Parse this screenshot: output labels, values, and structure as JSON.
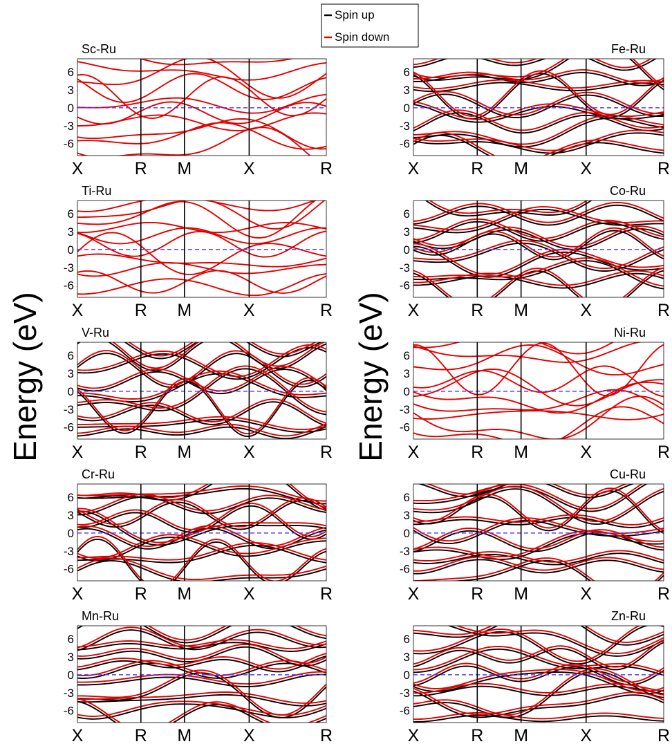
{
  "figure": {
    "ylabel_left": "Energy (eV)",
    "ylabel_right": "Energy (eV)"
  },
  "legend": [
    {
      "label": "Spin up",
      "color": "#000000"
    },
    {
      "label": "Spin down",
      "color": "#e00000"
    }
  ],
  "colors": {
    "spin_up": "#000000",
    "spin_down": "#e00000",
    "fermi_level": "#5a3dff"
  },
  "chart_data": [
    {
      "type": "line",
      "title": "Sc-Ru",
      "x_ticks": [
        "X",
        "R",
        "M",
        "X",
        "R"
      ],
      "y_ticks": [
        6,
        3,
        0,
        -3,
        -6
      ],
      "ylim": [
        -8,
        8.2
      ],
      "fermi_level": 0,
      "title_align": "left",
      "spin_split": false
    },
    {
      "type": "line",
      "title": "Fe-Ru",
      "x_ticks": [
        "X",
        "R",
        "M",
        "X",
        "R"
      ],
      "y_ticks": [
        6,
        3,
        0,
        -3,
        -6
      ],
      "ylim": [
        -8,
        8.2
      ],
      "fermi_level": 0,
      "title_align": "right",
      "spin_split": true
    },
    {
      "type": "line",
      "title": "Ti-Ru",
      "x_ticks": [
        "X",
        "R",
        "M",
        "X",
        "R"
      ],
      "y_ticks": [
        6,
        3,
        0,
        -3,
        -6
      ],
      "ylim": [
        -8,
        8.2
      ],
      "fermi_level": 0,
      "title_align": "left",
      "spin_split": false
    },
    {
      "type": "line",
      "title": "Co-Ru",
      "x_ticks": [
        "X",
        "R",
        "M",
        "X",
        "R"
      ],
      "y_ticks": [
        6,
        3,
        0,
        -3,
        -6
      ],
      "ylim": [
        -8,
        8.2
      ],
      "fermi_level": 0,
      "title_align": "right",
      "spin_split": true
    },
    {
      "type": "line",
      "title": "V-Ru",
      "x_ticks": [
        "X",
        "R",
        "M",
        "X",
        "R"
      ],
      "y_ticks": [
        6,
        3,
        0,
        -3,
        -6
      ],
      "ylim": [
        -8,
        8.2
      ],
      "fermi_level": 0,
      "title_align": "left",
      "spin_split": true
    },
    {
      "type": "line",
      "title": "Ni-Ru",
      "x_ticks": [
        "X",
        "R",
        "M",
        "X",
        "R"
      ],
      "y_ticks": [
        6,
        3,
        0,
        -3,
        -6
      ],
      "ylim": [
        -8,
        8.2
      ],
      "fermi_level": 0,
      "title_align": "right",
      "spin_split": false
    },
    {
      "type": "line",
      "title": "Cr-Ru",
      "x_ticks": [
        "X",
        "R",
        "M",
        "X",
        "R"
      ],
      "y_ticks": [
        6,
        3,
        0,
        -3,
        -6
      ],
      "ylim": [
        -8,
        8.2
      ],
      "fermi_level": 0,
      "title_align": "left",
      "spin_split": true
    },
    {
      "type": "line",
      "title": "Cu-Ru",
      "x_ticks": [
        "X",
        "R",
        "M",
        "X",
        "R"
      ],
      "y_ticks": [
        6,
        3,
        0,
        -3,
        -6
      ],
      "ylim": [
        -8,
        8.2
      ],
      "fermi_level": 0,
      "title_align": "right",
      "spin_split": true
    },
    {
      "type": "line",
      "title": "Mn-Ru",
      "x_ticks": [
        "X",
        "R",
        "M",
        "X",
        "R"
      ],
      "y_ticks": [
        6,
        3,
        0,
        -3,
        -6
      ],
      "ylim": [
        -8,
        8.2
      ],
      "fermi_level": 0,
      "title_align": "left",
      "spin_split": true
    },
    {
      "type": "line",
      "title": "Zn-Ru",
      "x_ticks": [
        "X",
        "R",
        "M",
        "X",
        "R"
      ],
      "y_ticks": [
        6,
        3,
        0,
        -3,
        -6
      ],
      "ylim": [
        -8,
        8.2
      ],
      "fermi_level": 0,
      "title_align": "right",
      "spin_split": true
    }
  ]
}
